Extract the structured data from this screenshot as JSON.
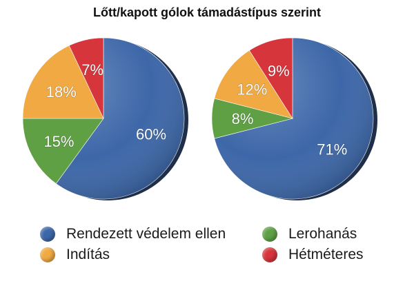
{
  "chart_data": [
    {
      "type": "pie",
      "title": "Lőtt/kapott gólok támadástípus szerint",
      "categories": [
        "Rendezett védelem ellen",
        "Lerohanás",
        "Indítás",
        "Hétméteres"
      ],
      "values": [
        60,
        15,
        18,
        7
      ],
      "labels": [
        "60%",
        "15%",
        "18%",
        "7%"
      ],
      "colors": [
        "#3d67a8",
        "#5fa045",
        "#f0a943",
        "#d6363b"
      ],
      "legend": "bottom"
    },
    {
      "type": "pie",
      "categories": [
        "Rendezett védelem ellen",
        "Lerohanás",
        "Indítás",
        "Hétméteres"
      ],
      "values": [
        71,
        8,
        12,
        9
      ],
      "labels": [
        "71%",
        "8%",
        "12%",
        "9%"
      ],
      "colors": [
        "#3d67a8",
        "#5fa045",
        "#f0a943",
        "#d6363b"
      ],
      "legend": "bottom"
    }
  ],
  "legend": {
    "items": [
      {
        "label": "Rendezett védelem ellen",
        "color": "#3d67a8"
      },
      {
        "label": "Lerohanás",
        "color": "#5fa045"
      },
      {
        "label": "Indítás",
        "color": "#f0a943"
      },
      {
        "label": "Hétméteres",
        "color": "#d6363b"
      }
    ]
  }
}
